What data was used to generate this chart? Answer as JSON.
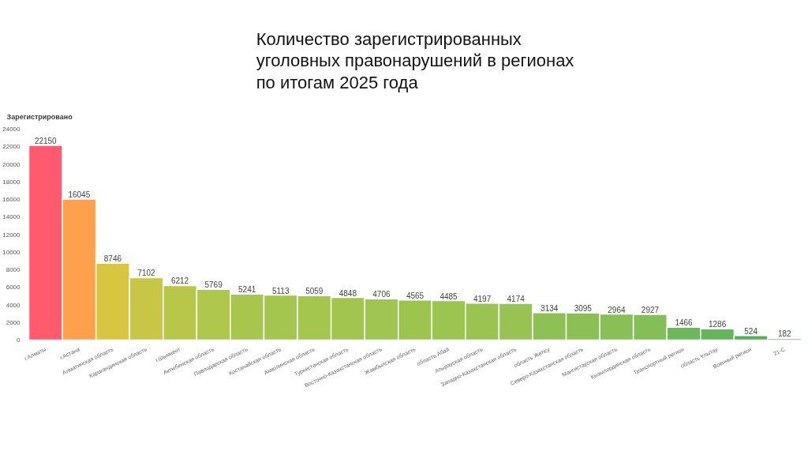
{
  "chart_data": {
    "type": "bar",
    "title": "Количество зарегистрированных уголовных правонарушений в регионах по итогам 2025 года",
    "ylabel": "Зарегистрировано",
    "categories": [
      "г.Алматы",
      "г.Астана",
      "Алматинская область",
      "Карагандинская область",
      "г.Шымкент",
      "Актюбинская область",
      "Павлодарская область",
      "Костанайская область",
      "Акмолинская область",
      "Туркестанская область",
      "Восточно-Казахстанская область",
      "Жамбылская область",
      "область Абай",
      "Атырауская область",
      "Западно-Казахстанская область",
      "область Жетісу",
      "Северо-Казахстанская область",
      "Мангистауская область",
      "Кызылординская область",
      "Транспортный регион",
      "область Ұлытау",
      "Военный регион",
      "21-С"
    ],
    "values": [
      22150,
      16045,
      8746,
      7102,
      6212,
      5769,
      5241,
      5113,
      5059,
      4848,
      4706,
      4565,
      4485,
      4197,
      4174,
      3134,
      3095,
      2964,
      2927,
      1466,
      1286,
      524,
      182
    ],
    "colors": [
      "#ff5a6e",
      "#ffa04c",
      "#d8c542",
      "#c8c646",
      "#b8c74a",
      "#aec74c",
      "#a8c64e",
      "#a5c64e",
      "#a4c64f",
      "#a2c54f",
      "#a0c550",
      "#9ec450",
      "#9cc451",
      "#9ac352",
      "#98c352",
      "#8ec155",
      "#8bc055",
      "#88bf56",
      "#84be56",
      "#6cb85a",
      "#65b65a",
      "#55b05a",
      "#45aa5a"
    ],
    "ylim": [
      0,
      24000
    ],
    "yticks": [
      0,
      2000,
      4000,
      6000,
      8000,
      10000,
      12000,
      14000,
      16000,
      18000,
      20000,
      22000,
      24000
    ],
    "data_labels": true
  }
}
